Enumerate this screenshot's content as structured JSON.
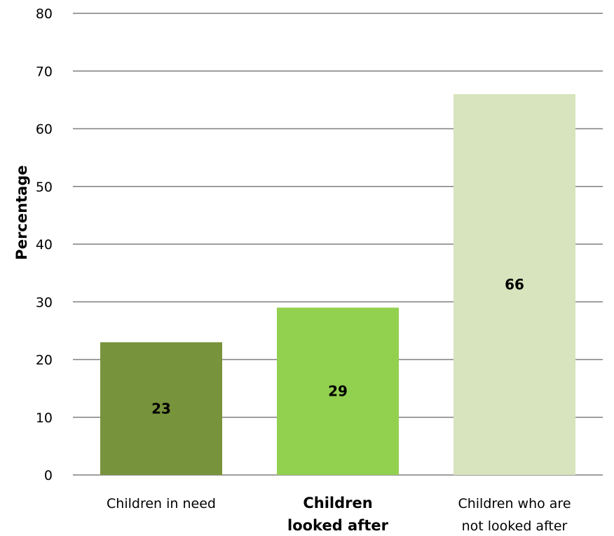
{
  "chart_data": {
    "type": "bar",
    "title": "",
    "xlabel": "",
    "ylabel": "Percentage",
    "categories": [
      [
        "Children in need"
      ],
      [
        "Children",
        "looked  after"
      ],
      [
        "Children who are",
        "not looked after"
      ]
    ],
    "category_bold": [
      false,
      true,
      false
    ],
    "values": [
      23,
      29,
      66
    ],
    "data_labels": [
      "23",
      "29",
      "66"
    ],
    "bar_colors": [
      "#77933c",
      "#92d050",
      "#d7e4bd"
    ],
    "ylim": [
      0,
      80
    ],
    "yticks": [
      "0",
      "10",
      "20",
      "30",
      "40",
      "50",
      "60",
      "70",
      "80"
    ],
    "grid": true,
    "gridline_color": "#7f7f7f",
    "legend": false
  }
}
